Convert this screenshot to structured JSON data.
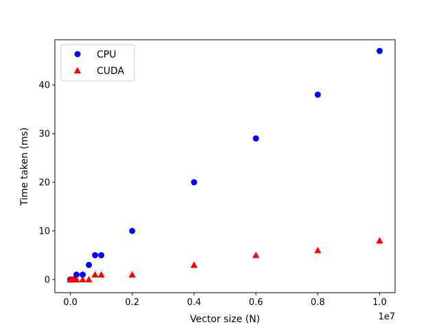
{
  "chart_data": {
    "type": "scatter",
    "title": "",
    "xlabel": "Vector size (N)",
    "ylabel": "Time taken (ms)",
    "x_offset_label": "1e7",
    "xlim": [
      -0.05,
      1.05
    ],
    "ylim": [
      -2.7,
      49.3
    ],
    "x_ticks": [
      0.0,
      0.2,
      0.4,
      0.6,
      0.8,
      1.0
    ],
    "x_tick_labels": [
      "0.0",
      "0.2",
      "0.4",
      "0.6",
      "0.8",
      "1.0"
    ],
    "y_ticks": [
      0,
      10,
      20,
      30,
      40
    ],
    "y_tick_labels": [
      "0",
      "10",
      "20",
      "30",
      "40"
    ],
    "grid": false,
    "legend_position": "upper-left",
    "series": [
      {
        "name": "CPU",
        "marker": "circle",
        "color": "#0000ff",
        "x": [
          0.0,
          0.005,
          0.01,
          0.02,
          0.04,
          0.06,
          0.08,
          0.1,
          0.2,
          0.4,
          0.6,
          0.8,
          1.0
        ],
        "y": [
          0,
          0,
          0,
          1,
          1,
          3,
          5,
          5,
          10,
          20,
          29,
          38,
          47
        ]
      },
      {
        "name": "CUDA",
        "marker": "triangle",
        "color": "#ff0000",
        "x": [
          0.0,
          0.005,
          0.01,
          0.02,
          0.04,
          0.06,
          0.08,
          0.1,
          0.2,
          0.4,
          0.6,
          0.8,
          1.0
        ],
        "y": [
          0,
          0,
          0,
          0,
          0,
          0,
          1,
          1,
          1,
          3,
          5,
          6,
          8
        ]
      }
    ]
  }
}
